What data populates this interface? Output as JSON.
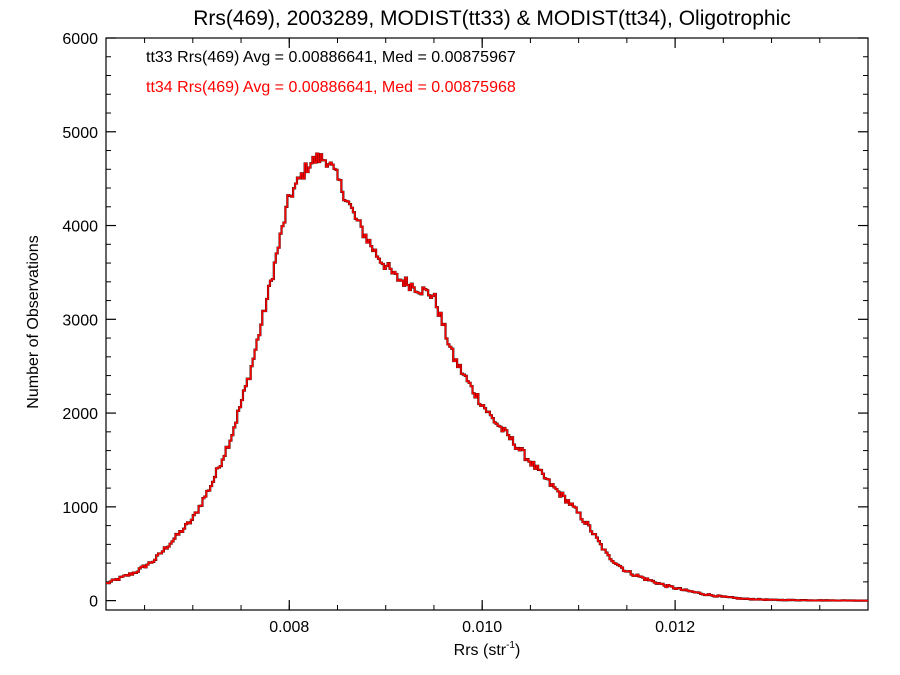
{
  "chart_data": {
    "type": "histogram-step",
    "title": "Rrs(469), 2003289, MODIST(tt33) & MODIST(tt34), Oligotrophic",
    "xlabel_main": "Rrs (str",
    "xlabel_sup": "-1",
    "xlabel_end": ")",
    "ylabel": "Number of Observations",
    "xlim": [
      0.0061,
      0.014
    ],
    "ylim": [
      -100,
      6000
    ],
    "x_ticks": [
      0.008,
      0.01,
      0.012
    ],
    "x_tick_labels": [
      "0.008",
      "0.010",
      "0.012"
    ],
    "y_ticks": [
      0,
      1000,
      2000,
      3000,
      4000,
      5000,
      6000
    ],
    "y_tick_labels": [
      "0",
      "1000",
      "2000",
      "3000",
      "4000",
      "5000",
      "6000"
    ],
    "annotations": [
      {
        "text": "tt33 Rrs(469) Avg = 0.00886641, Med = 0.00875967",
        "color": "#000000"
      },
      {
        "text": "tt34 Rrs(469) Avg = 0.00886641, Med = 0.00875968",
        "color": "#ff0000"
      }
    ],
    "series": [
      {
        "name": "tt33",
        "color": "#000000"
      },
      {
        "name": "tt34",
        "color": "#ff0000"
      }
    ],
    "profile": [
      [
        0.0061,
        180
      ],
      [
        0.0064,
        300
      ],
      [
        0.0066,
        430
      ],
      [
        0.0068,
        650
      ],
      [
        0.007,
        870
      ],
      [
        0.0072,
        1250
      ],
      [
        0.0074,
        1750
      ],
      [
        0.0076,
        2450
      ],
      [
        0.0078,
        3350
      ],
      [
        0.008,
        4300
      ],
      [
        0.0082,
        4650
      ],
      [
        0.0083,
        4720
      ],
      [
        0.0084,
        4700
      ],
      [
        0.0085,
        4500
      ],
      [
        0.0087,
        4050
      ],
      [
        0.0089,
        3700
      ],
      [
        0.0091,
        3450
      ],
      [
        0.0093,
        3350
      ],
      [
        0.0095,
        3250
      ],
      [
        0.0097,
        2600
      ],
      [
        0.0099,
        2250
      ],
      [
        0.0101,
        1950
      ],
      [
        0.0103,
        1720
      ],
      [
        0.0105,
        1480
      ],
      [
        0.0107,
        1250
      ],
      [
        0.0109,
        1050
      ],
      [
        0.0111,
        800
      ],
      [
        0.0113,
        480
      ],
      [
        0.0115,
        310
      ],
      [
        0.0117,
        230
      ],
      [
        0.0119,
        160
      ],
      [
        0.0121,
        110
      ],
      [
        0.0123,
        70
      ],
      [
        0.0125,
        40
      ],
      [
        0.0127,
        20
      ],
      [
        0.013,
        8
      ],
      [
        0.0135,
        3
      ],
      [
        0.014,
        0
      ]
    ],
    "bin_width": 2e-05
  }
}
